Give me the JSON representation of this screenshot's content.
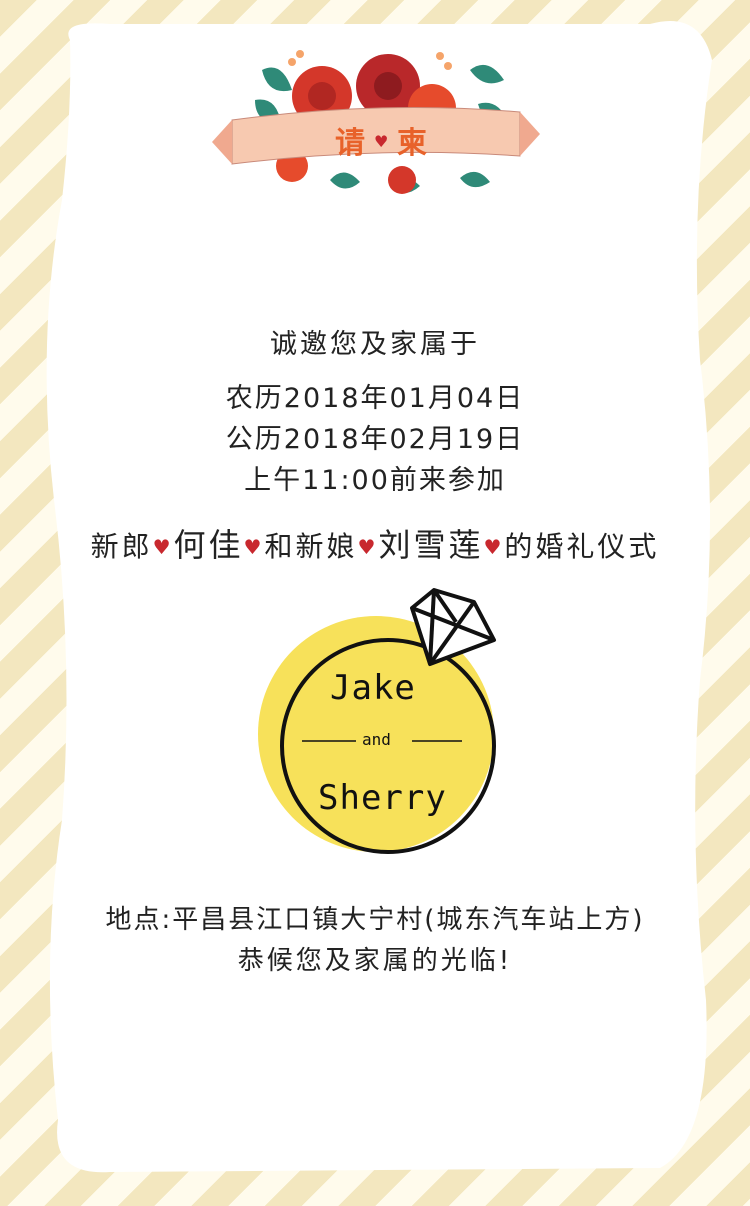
{
  "banner": {
    "title_left": "请",
    "heart": "♥",
    "title_right": "柬"
  },
  "invitation": {
    "line1": "诚邀您及家属于",
    "lunar_date": "农历2018年01月04日",
    "solar_date": "公历2018年02月19日",
    "time": "上午11:00前来参加"
  },
  "names_line": {
    "groom_prefix": "新郎",
    "groom_name": "何佳",
    "connector": "和新娘",
    "bride_name": "刘雪莲",
    "suffix": "的婚礼仪式",
    "heart": "♥"
  },
  "ring": {
    "name1": "Jake",
    "and": "and",
    "name2": "Sherry",
    "circle_color": "#f7e15a"
  },
  "location": {
    "address": "地点:平昌县江口镇大宁村(城东汽车站上方)",
    "welcome": "恭候您及家属的光临!"
  },
  "colors": {
    "accent": "#c8282e",
    "stripe": "#f3e7bf",
    "banner": "#f7c9b0"
  }
}
